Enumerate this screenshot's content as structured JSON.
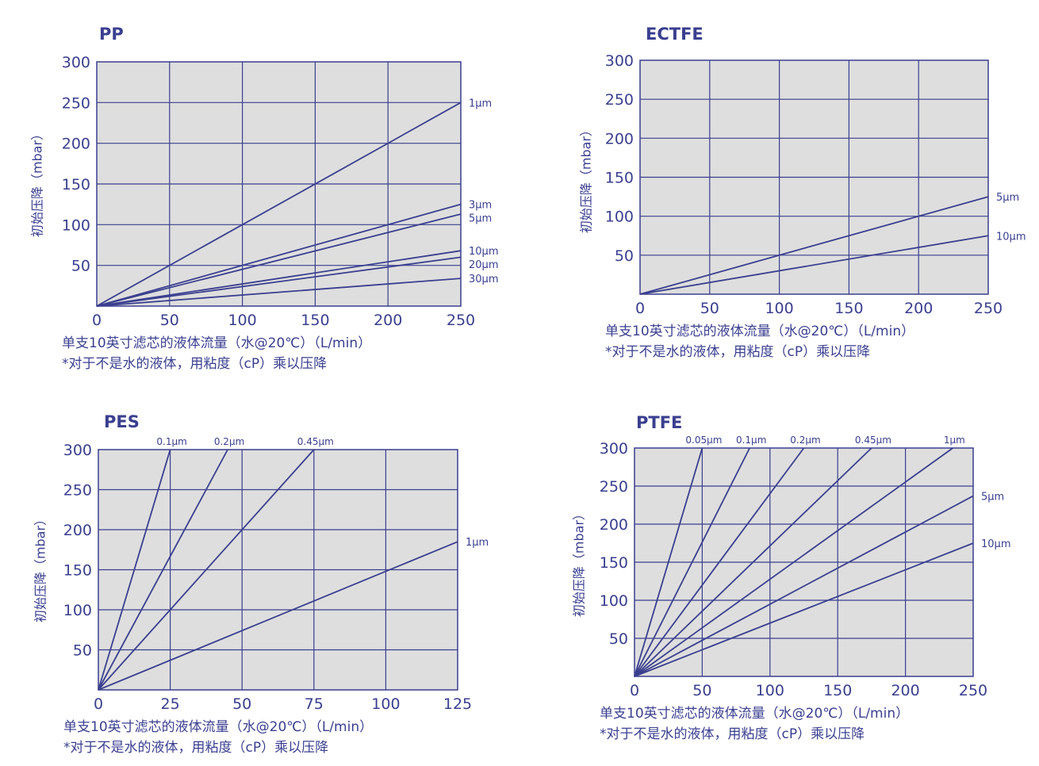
{
  "colors": {
    "line": "#3a3f8f",
    "plot_bg": "#dedede",
    "text": "#3a3f8f"
  },
  "chart_data": [
    {
      "type": "line",
      "title": "PP",
      "ylabel": "初始压降（mbar）",
      "xlabel": "单支10英寸滤芯的液体流量（水@20℃）（L/min）",
      "note": "*对于不是水的液体，用粘度（cP）乘以压降",
      "xlim": [
        0,
        250
      ],
      "ylim": [
        0,
        300
      ],
      "xticks": [
        0,
        50,
        100,
        150,
        200,
        250
      ],
      "yticks": [
        50,
        100,
        150,
        200,
        250,
        300
      ],
      "grid": true,
      "series": [
        {
          "name": "1μm",
          "x": [
            0,
            250
          ],
          "y": [
            0,
            250
          ]
        },
        {
          "name": "3μm",
          "x": [
            0,
            250
          ],
          "y": [
            0,
            125
          ]
        },
        {
          "name": "5μm",
          "x": [
            0,
            250
          ],
          "y": [
            0,
            113
          ]
        },
        {
          "name": "10μm",
          "x": [
            0,
            250
          ],
          "y": [
            0,
            68
          ]
        },
        {
          "name": "20μm",
          "x": [
            0,
            250
          ],
          "y": [
            0,
            60
          ]
        },
        {
          "name": "30μm",
          "x": [
            0,
            250
          ],
          "y": [
            0,
            34
          ]
        }
      ]
    },
    {
      "type": "line",
      "title": "ECTFE",
      "ylabel": "初始压降（mbar）",
      "xlabel": "单支10英寸滤芯的液体流量（水@20℃）（L/min）",
      "note": "*对于不是水的液体，用粘度（cP）乘以压降",
      "xlim": [
        0,
        250
      ],
      "ylim": [
        0,
        300
      ],
      "xticks": [
        0,
        50,
        100,
        150,
        200,
        250
      ],
      "yticks": [
        50,
        100,
        150,
        200,
        250,
        300
      ],
      "grid": true,
      "series": [
        {
          "name": "5μm",
          "x": [
            0,
            250
          ],
          "y": [
            0,
            125
          ]
        },
        {
          "name": "10μm",
          "x": [
            0,
            250
          ],
          "y": [
            0,
            75
          ]
        }
      ]
    },
    {
      "type": "line",
      "title": "PES",
      "ylabel": "初始压降（mbar）",
      "xlabel": "单支10英寸滤芯的液体流量（水@20℃）（L/min）",
      "note": "*对于不是水的液体，用粘度（cP）乘以压降",
      "xlim": [
        0,
        125
      ],
      "ylim": [
        0,
        300
      ],
      "xticks": [
        0,
        25,
        50,
        75,
        100,
        125
      ],
      "yticks": [
        50,
        100,
        150,
        200,
        250,
        300
      ],
      "grid": true,
      "series": [
        {
          "name": "0.1μm",
          "x": [
            0,
            25
          ],
          "y": [
            0,
            300
          ]
        },
        {
          "name": "0.2μm",
          "x": [
            0,
            45
          ],
          "y": [
            0,
            300
          ]
        },
        {
          "name": "0.45μm",
          "x": [
            0,
            75
          ],
          "y": [
            0,
            300
          ]
        },
        {
          "name": "1μm",
          "x": [
            0,
            125
          ],
          "y": [
            0,
            185
          ]
        }
      ]
    },
    {
      "type": "line",
      "title": "PTFE",
      "ylabel": "初始压降（mbar）",
      "xlabel": "单支10英寸滤芯的液体流量（水@20℃）（L/min）",
      "note": "*对于不是水的液体，用粘度（cP）乘以压降",
      "xlim": [
        0,
        250
      ],
      "ylim": [
        0,
        300
      ],
      "xticks": [
        0,
        50,
        100,
        150,
        200,
        250
      ],
      "yticks": [
        50,
        100,
        150,
        200,
        250,
        300
      ],
      "grid": true,
      "series": [
        {
          "name": "0.05μm",
          "x": [
            0,
            50
          ],
          "y": [
            0,
            300
          ]
        },
        {
          "name": "0.1μm",
          "x": [
            0,
            85
          ],
          "y": [
            0,
            300
          ]
        },
        {
          "name": "0.2μm",
          "x": [
            0,
            125
          ],
          "y": [
            0,
            300
          ]
        },
        {
          "name": "0.45μm",
          "x": [
            0,
            175
          ],
          "y": [
            0,
            300
          ]
        },
        {
          "name": "1μm",
          "x": [
            0,
            235
          ],
          "y": [
            0,
            300
          ]
        },
        {
          "name": "5μm",
          "x": [
            0,
            250
          ],
          "y": [
            0,
            237
          ]
        },
        {
          "name": "10μm",
          "x": [
            0,
            250
          ],
          "y": [
            0,
            175
          ]
        }
      ]
    }
  ]
}
